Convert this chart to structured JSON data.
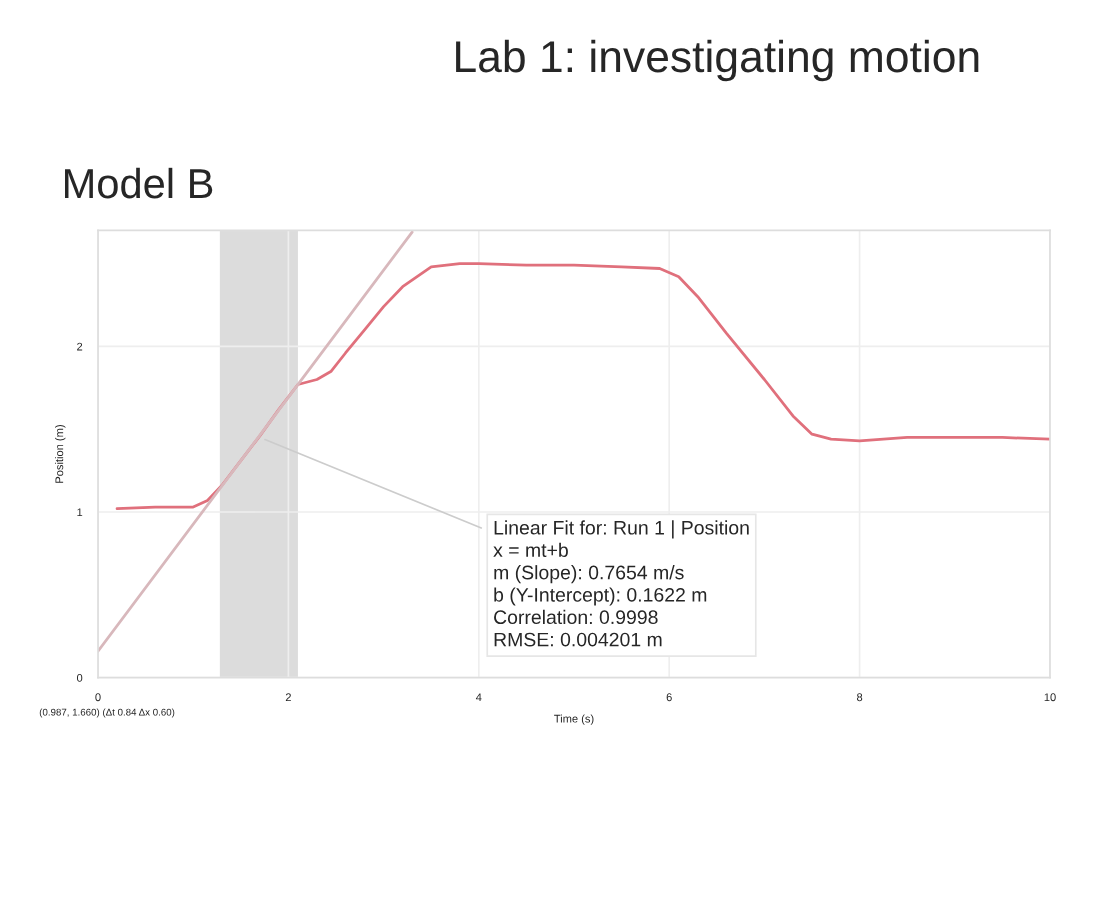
{
  "chart_data": {
    "type": "line",
    "title": "Lab 1: investigating motion",
    "subtitle": "Model B",
    "xlabel": "Time (s)",
    "ylabel": "Position (m)",
    "xlim": [
      0,
      10
    ],
    "ylim": [
      0,
      2.7
    ],
    "xticks": [
      0,
      2,
      4,
      6,
      8,
      10
    ],
    "yticks": [
      0,
      1,
      2
    ],
    "grid": true,
    "legend": false,
    "marker": "none",
    "line_style": "solid",
    "series": [
      {
        "color": "#e0707c",
        "x": [
          0.2,
          0.6,
          1.0,
          1.15,
          1.3,
          1.5,
          1.7,
          1.9,
          2.1,
          2.3,
          2.45,
          2.6,
          2.8,
          3.0,
          3.2,
          3.5,
          3.8,
          4.0,
          4.5,
          5.0,
          5.5,
          5.9,
          6.1,
          6.3,
          6.6,
          7.0,
          7.3,
          7.5,
          7.7,
          8.0,
          8.5,
          9.0,
          9.5,
          10.0
        ],
        "values": [
          1.02,
          1.03,
          1.03,
          1.07,
          1.16,
          1.31,
          1.46,
          1.62,
          1.77,
          1.8,
          1.85,
          1.96,
          2.1,
          2.24,
          2.36,
          2.48,
          2.5,
          2.5,
          2.49,
          2.49,
          2.48,
          2.47,
          2.42,
          2.3,
          2.08,
          1.8,
          1.58,
          1.47,
          1.44,
          1.43,
          1.45,
          1.45,
          1.45,
          1.44
        ]
      },
      {
        "type": "line",
        "color": "#d8b8bc",
        "x": [
          0,
          3.3
        ],
        "values": [
          0.16,
          2.69
        ]
      }
    ],
    "bands": [
      {
        "axis": "x",
        "from": 1.28,
        "to": 2.1,
        "color": "#dcdcdc"
      }
    ],
    "annotations": [
      {
        "text": "Linear Fit for: Run 1 | Position\nx = mt+b\nm (Slope): 0.7654 m/s\nb (Y-Intercept): 0.1622 m\nCorrelation: 0.9998\nRMSE: 0.004201 m",
        "x": 1.7,
        "y": 1.45
      },
      "(0.987, 1.660) (Δt 0.84 Δx 0.60)"
    ]
  }
}
